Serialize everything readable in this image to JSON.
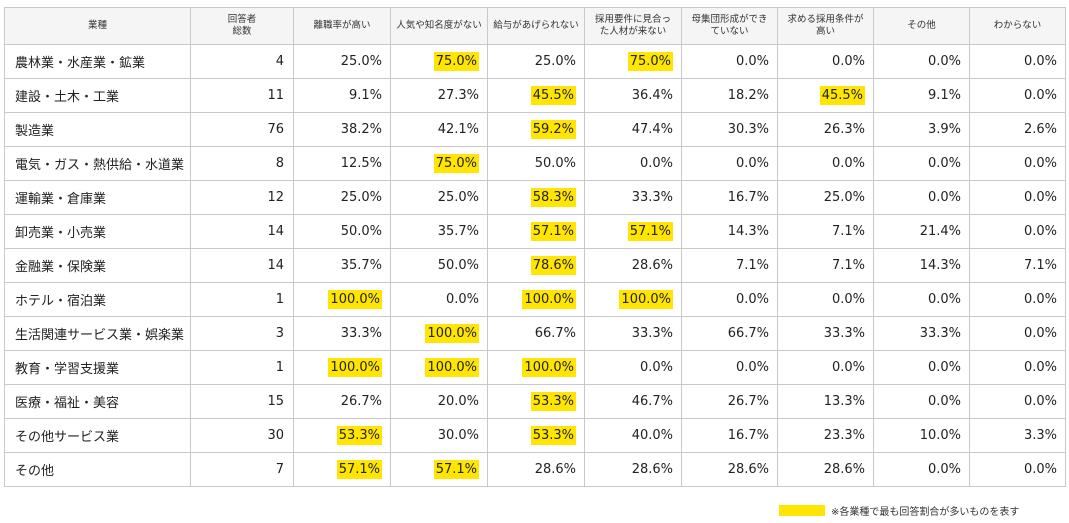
{
  "table": {
    "headers": [
      "業種",
      "回答者\n総数",
      "離職率が高い",
      "人気や知名度がない",
      "給与があげられない",
      "採用要件に見合っ\nた人材が来ない",
      "母集団形成ができ\nていない",
      "求める採用条件が\n高い",
      "その他",
      "わからない"
    ],
    "rows": [
      {
        "industry": "農林業・水産業・鉱業",
        "total": "4",
        "values": [
          "25.0%",
          "75.0%",
          "25.0%",
          "75.0%",
          "0.0%",
          "0.0%",
          "0.0%",
          "0.0%"
        ],
        "highlight": [
          false,
          true,
          false,
          true,
          false,
          false,
          false,
          false
        ]
      },
      {
        "industry": "建設・土木・工業",
        "total": "11",
        "values": [
          "9.1%",
          "27.3%",
          "45.5%",
          "36.4%",
          "18.2%",
          "45.5%",
          "9.1%",
          "0.0%"
        ],
        "highlight": [
          false,
          false,
          true,
          false,
          false,
          true,
          false,
          false
        ]
      },
      {
        "industry": "製造業",
        "total": "76",
        "values": [
          "38.2%",
          "42.1%",
          "59.2%",
          "47.4%",
          "30.3%",
          "26.3%",
          "3.9%",
          "2.6%"
        ],
        "highlight": [
          false,
          false,
          true,
          false,
          false,
          false,
          false,
          false
        ]
      },
      {
        "industry": "電気・ガス・熱供給・水道業",
        "total": "8",
        "values": [
          "12.5%",
          "75.0%",
          "50.0%",
          "0.0%",
          "0.0%",
          "0.0%",
          "0.0%",
          "0.0%"
        ],
        "highlight": [
          false,
          true,
          false,
          false,
          false,
          false,
          false,
          false
        ]
      },
      {
        "industry": "運輸業・倉庫業",
        "total": "12",
        "values": [
          "25.0%",
          "25.0%",
          "58.3%",
          "33.3%",
          "16.7%",
          "25.0%",
          "0.0%",
          "0.0%"
        ],
        "highlight": [
          false,
          false,
          true,
          false,
          false,
          false,
          false,
          false
        ]
      },
      {
        "industry": "卸売業・小売業",
        "total": "14",
        "values": [
          "50.0%",
          "35.7%",
          "57.1%",
          "57.1%",
          "14.3%",
          "7.1%",
          "21.4%",
          "0.0%"
        ],
        "highlight": [
          false,
          false,
          true,
          true,
          false,
          false,
          false,
          false
        ]
      },
      {
        "industry": "金融業・保険業",
        "total": "14",
        "values": [
          "35.7%",
          "50.0%",
          "78.6%",
          "28.6%",
          "7.1%",
          "7.1%",
          "14.3%",
          "7.1%"
        ],
        "highlight": [
          false,
          false,
          true,
          false,
          false,
          false,
          false,
          false
        ]
      },
      {
        "industry": "ホテル・宿泊業",
        "total": "1",
        "values": [
          "100.0%",
          "0.0%",
          "100.0%",
          "100.0%",
          "0.0%",
          "0.0%",
          "0.0%",
          "0.0%"
        ],
        "highlight": [
          true,
          false,
          true,
          true,
          false,
          false,
          false,
          false
        ]
      },
      {
        "industry": "生活関連サービス業・娯楽業",
        "total": "3",
        "values": [
          "33.3%",
          "100.0%",
          "66.7%",
          "33.3%",
          "66.7%",
          "33.3%",
          "33.3%",
          "0.0%"
        ],
        "highlight": [
          false,
          true,
          false,
          false,
          false,
          false,
          false,
          false
        ]
      },
      {
        "industry": "教育・学習支援業",
        "total": "1",
        "values": [
          "100.0%",
          "100.0%",
          "100.0%",
          "0.0%",
          "0.0%",
          "0.0%",
          "0.0%",
          "0.0%"
        ],
        "highlight": [
          true,
          true,
          true,
          false,
          false,
          false,
          false,
          false
        ]
      },
      {
        "industry": "医療・福祉・美容",
        "total": "15",
        "values": [
          "26.7%",
          "20.0%",
          "53.3%",
          "46.7%",
          "26.7%",
          "13.3%",
          "0.0%",
          "0.0%"
        ],
        "highlight": [
          false,
          false,
          true,
          false,
          false,
          false,
          false,
          false
        ]
      },
      {
        "industry": "その他サービス業",
        "total": "30",
        "values": [
          "53.3%",
          "30.0%",
          "53.3%",
          "40.0%",
          "16.7%",
          "23.3%",
          "10.0%",
          "3.3%"
        ],
        "highlight": [
          true,
          false,
          true,
          false,
          false,
          false,
          false,
          false
        ]
      },
      {
        "industry": "その他",
        "total": "7",
        "values": [
          "57.1%",
          "57.1%",
          "28.6%",
          "28.6%",
          "28.6%",
          "28.6%",
          "0.0%",
          "0.0%"
        ],
        "highlight": [
          true,
          true,
          false,
          false,
          false,
          false,
          false,
          false
        ]
      }
    ]
  },
  "legend": {
    "text": "※各業種で最も回答割合が多いものを表す",
    "color": "#ffe500"
  }
}
